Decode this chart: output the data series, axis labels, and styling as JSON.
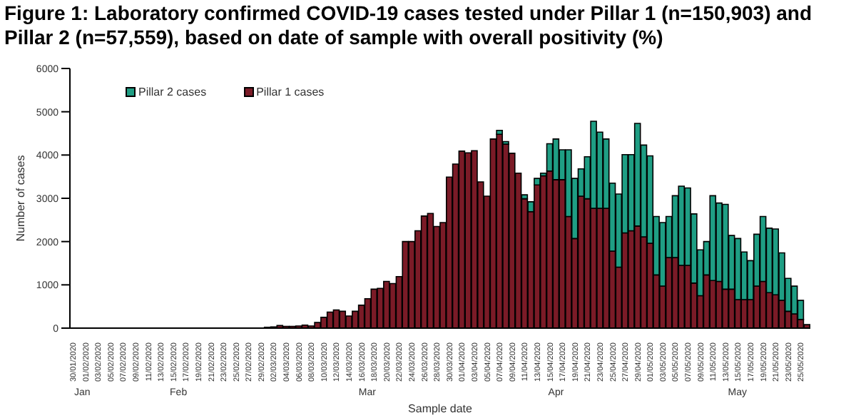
{
  "chart_data": {
    "type": "bar",
    "title": "Figure 1: Laboratory confirmed COVID-19 cases tested under Pillar 1 (n=150,903) and Pillar 2 (n=57,559), based on date of sample with overall positivity (%)",
    "xlabel": "Sample date",
    "ylabel": "Number of cases",
    "categories": [
      "30/01/2020",
      null,
      "01/02/2020",
      null,
      "03/02/2020",
      null,
      "05/02/2020",
      null,
      "07/02/2020",
      null,
      "09/02/2020",
      null,
      "11/02/2020",
      null,
      "13/02/2020",
      null,
      "15/02/2020",
      null,
      "17/02/2020",
      null,
      "19/02/2020",
      null,
      "21/02/2020",
      null,
      "23/02/2020",
      null,
      "25/02/2020",
      null,
      "27/02/2020",
      null,
      "29/02/2020",
      null,
      "02/03/2020",
      null,
      "04/03/2020",
      null,
      "06/03/2020",
      null,
      "08/03/2020",
      null,
      "10/03/2020",
      null,
      "12/03/2020",
      null,
      "14/03/2020",
      null,
      "16/03/2020",
      null,
      "18/03/2020",
      null,
      "20/03/2020",
      null,
      "22/03/2020",
      null,
      "24/03/2020",
      null,
      "26/03/2020",
      null,
      "28/03/2020",
      null,
      "30/03/2020",
      null,
      "01/04/2020",
      null,
      "03/04/2020",
      null,
      "05/04/2020",
      null,
      "07/04/2020",
      null,
      "09/04/2020",
      null,
      "11/04/2020",
      null,
      "13/04/2020",
      null,
      "15/04/2020",
      null,
      "17/04/2020",
      null,
      "19/04/2020",
      null,
      "21/04/2020",
      null,
      "23/04/2020",
      null,
      "25/04/2020",
      null,
      "27/04/2020",
      null,
      "29/04/2020",
      null,
      "01/05/2020",
      null,
      "03/05/2020",
      null,
      "05/05/2020",
      null,
      "07/05/2020",
      null,
      "09/05/2020",
      null,
      "11/05/2020",
      null,
      "13/05/2020",
      null,
      "15/05/2020",
      null,
      "17/05/2020",
      null,
      "19/05/2020",
      null,
      "21/05/2020",
      null,
      "23/05/2020",
      null,
      "25/05/2020",
      null
    ],
    "series": [
      {
        "name": "Pillar 1 cases",
        "color": "#7b1b27",
        "values": [
          0,
          0,
          0,
          0,
          0,
          0,
          0,
          0,
          0,
          0,
          0,
          0,
          0,
          0,
          0,
          0,
          0,
          0,
          0,
          0,
          0,
          0,
          0,
          0,
          0,
          0,
          0,
          0,
          0,
          0,
          0,
          20,
          30,
          60,
          40,
          40,
          50,
          70,
          50,
          130,
          250,
          370,
          420,
          390,
          280,
          390,
          530,
          680,
          900,
          920,
          1080,
          1030,
          1190,
          2000,
          2000,
          2250,
          2590,
          2650,
          2350,
          2440,
          3490,
          3790,
          4090,
          4050,
          4100,
          3380,
          3050,
          4370,
          4480,
          4250,
          4040,
          3580,
          2990,
          2690,
          3310,
          3520,
          3630,
          3430,
          3430,
          2580,
          2070,
          3050,
          2990,
          2770,
          2770,
          2770,
          1780,
          1410,
          2200,
          2250,
          2360,
          2110,
          1960,
          1230,
          970,
          1630,
          1630,
          1450,
          1450,
          1040,
          750,
          1230,
          1100,
          1080,
          900,
          900,
          660,
          660,
          660,
          970,
          1080,
          820,
          770,
          640,
          390,
          330,
          200,
          80
        ]
      },
      {
        "name": "Pillar 2 cases",
        "color": "#1f9e84",
        "values": [
          0,
          0,
          0,
          0,
          0,
          0,
          0,
          0,
          0,
          0,
          0,
          0,
          0,
          0,
          0,
          0,
          0,
          0,
          0,
          0,
          0,
          0,
          0,
          0,
          0,
          0,
          0,
          0,
          0,
          0,
          0,
          0,
          0,
          0,
          0,
          0,
          0,
          0,
          0,
          0,
          0,
          0,
          0,
          0,
          0,
          0,
          0,
          0,
          0,
          0,
          0,
          0,
          0,
          0,
          0,
          0,
          0,
          0,
          0,
          0,
          0,
          0,
          0,
          0,
          0,
          0,
          0,
          0,
          90,
          60,
          0,
          0,
          90,
          230,
          150,
          60,
          630,
          940,
          690,
          1540,
          1390,
          630,
          970,
          2010,
          1760,
          1600,
          1570,
          1690,
          1810,
          1760,
          2370,
          2120,
          2020,
          1350,
          1470,
          950,
          1430,
          1830,
          1790,
          1600,
          1060,
          770,
          1960,
          1810,
          1960,
          1240,
          1410,
          1100,
          900,
          1200,
          1500,
          1490,
          1520,
          1100,
          760,
          640,
          440,
          0
        ]
      }
    ],
    "stacked": true,
    "ylim": [
      0,
      6000
    ],
    "yticks": [
      0,
      1000,
      2000,
      3000,
      4000,
      5000,
      6000
    ],
    "legend": "top left",
    "annotations": [
      "Jan",
      "Feb",
      "Mar",
      "Apr",
      "May"
    ]
  }
}
